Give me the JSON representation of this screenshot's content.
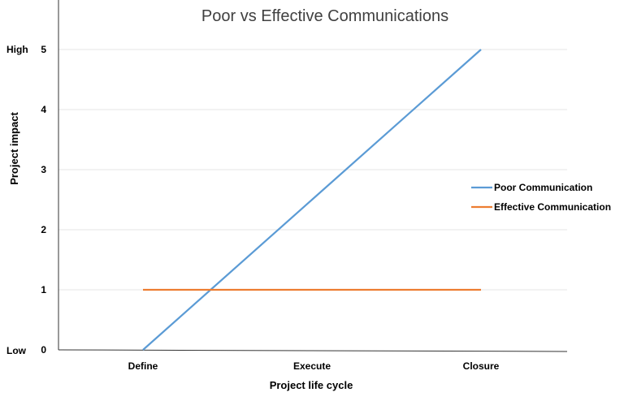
{
  "chart_data": {
    "type": "line",
    "title": "Poor vs Effective Communications",
    "xlabel": "Project life cycle",
    "ylabel": "Project impact",
    "categories": [
      "Define",
      "Execute",
      "Closure"
    ],
    "x": [
      0,
      1,
      2
    ],
    "ylim": [
      0,
      5
    ],
    "yticks": [
      0,
      1,
      2,
      3,
      4,
      5
    ],
    "y_level_labels": {
      "high": "High",
      "low": "Low"
    },
    "grid": true,
    "legend": "right",
    "series": [
      {
        "name": "Poor Communication",
        "color": "#5b9bd5",
        "values": [
          0,
          2.5,
          5
        ]
      },
      {
        "name": "Effective Communication",
        "color": "#ed7d31",
        "values": [
          1,
          1,
          1
        ]
      }
    ]
  }
}
